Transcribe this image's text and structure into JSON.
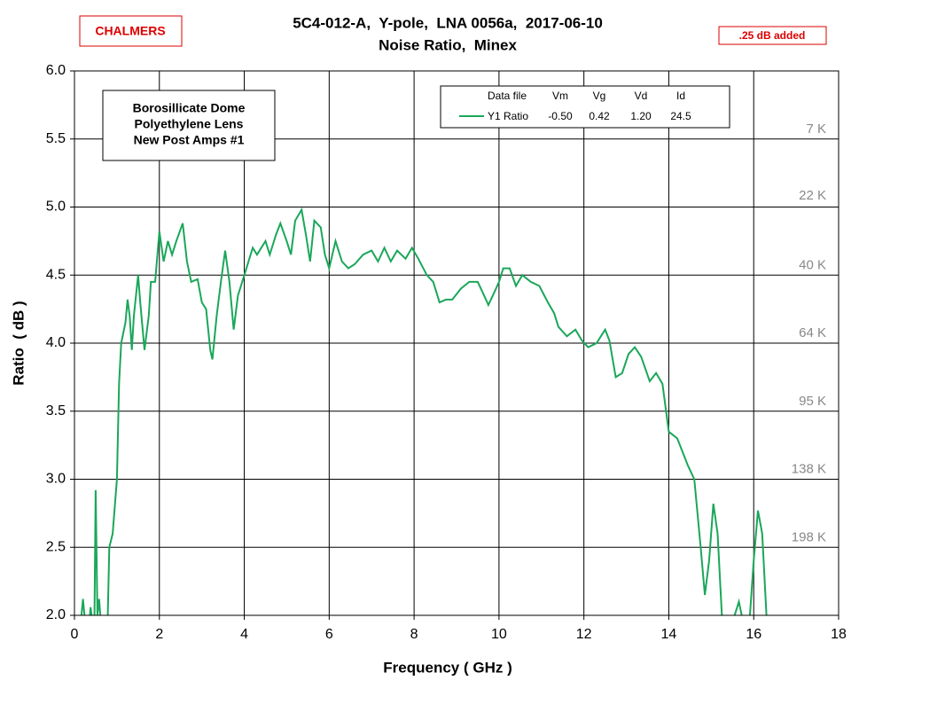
{
  "chart_data": {
    "type": "line",
    "title": "5C4-012-A,  Y-pole,  LNA 0056a,  2017-06-10",
    "subtitle": "Noise Ratio,  Minex",
    "logo": "CHALMERS",
    "note": ".25 dB added",
    "text_box": [
      "Borosillicate Dome",
      "Polyethylene Lens",
      "New Post Amps #1"
    ],
    "x_label": "Frequency ( GHz )",
    "y_label": "Ratio  ( dB )",
    "legend_table": {
      "headers": [
        "Data file",
        "Vm",
        "Vg",
        "Vd",
        "Id"
      ],
      "values": [
        "-0.50",
        "0.42",
        "1.20",
        "24.5"
      ]
    },
    "right_labels": [
      {
        "value": 5.57,
        "label": "7 K"
      },
      {
        "value": 5.08,
        "label": "22 K"
      },
      {
        "value": 4.57,
        "label": "40 K"
      },
      {
        "value": 4.07,
        "label": "64 K"
      },
      {
        "value": 3.57,
        "label": "95 K"
      },
      {
        "value": 3.07,
        "label": "138 K"
      },
      {
        "value": 2.57,
        "label": "198 K"
      }
    ],
    "xlim": [
      0,
      18
    ],
    "ylim": [
      2,
      6
    ],
    "xticks": [
      0,
      2,
      4,
      6,
      8,
      10,
      12,
      14,
      16,
      18
    ],
    "yticks": [
      {
        "value": 2,
        "label": "2.0"
      },
      2.5,
      {
        "value": 3,
        "label": "3.0"
      },
      3.5,
      {
        "value": 4,
        "label": "4.0"
      },
      4.5,
      {
        "value": 5,
        "label": "5.0"
      },
      5.5,
      {
        "value": 6,
        "label": "6.0"
      }
    ],
    "grid": true,
    "x": [
      0.15,
      0.2,
      0.25,
      0.35,
      0.38,
      0.42,
      0.47,
      0.5,
      0.54,
      0.58,
      0.62,
      0.78,
      0.82,
      0.9,
      1.0,
      1.05,
      1.1,
      1.2,
      1.25,
      1.3,
      1.35,
      1.4,
      1.5,
      1.55,
      1.65,
      1.75,
      1.8,
      1.9,
      2.0,
      2.1,
      2.2,
      2.3,
      2.4,
      2.55,
      2.65,
      2.75,
      2.9,
      3.0,
      3.1,
      3.2,
      3.25,
      3.35,
      3.45,
      3.55,
      3.65,
      3.75,
      3.85,
      4.0,
      4.1,
      4.2,
      4.3,
      4.5,
      4.6,
      4.75,
      4.85,
      5.0,
      5.1,
      5.2,
      5.35,
      5.45,
      5.55,
      5.65,
      5.8,
      5.9,
      6.0,
      6.15,
      6.3,
      6.45,
      6.6,
      6.8,
      7.0,
      7.15,
      7.3,
      7.45,
      7.6,
      7.8,
      7.95,
      8.1,
      8.3,
      8.45,
      8.6,
      8.75,
      8.9,
      9.1,
      9.3,
      9.5,
      9.65,
      9.75,
      9.9,
      10.0,
      10.1,
      10.25,
      10.4,
      10.55,
      10.75,
      10.95,
      11.15,
      11.3,
      11.4,
      11.6,
      11.8,
      11.95,
      12.1,
      12.3,
      12.5,
      12.6,
      12.75,
      12.9,
      13.05,
      13.2,
      13.35,
      13.55,
      13.7,
      13.85,
      14.0,
      14.2,
      14.45,
      14.6,
      14.75,
      14.85,
      14.95,
      15.05,
      15.15,
      15.25,
      15.35,
      15.55,
      15.65,
      15.75,
      15.9,
      16.0,
      16.1,
      16.2,
      16.3
    ],
    "series": [
      {
        "name": "Y1 Ratio",
        "color": "#1aa75a",
        "values": [
          1.95,
          2.12,
          1.95,
          1.95,
          2.06,
          1.95,
          1.95,
          2.92,
          2.0,
          2.12,
          1.95,
          1.95,
          2.5,
          2.6,
          3.0,
          3.7,
          4.0,
          4.15,
          4.32,
          4.2,
          3.95,
          4.2,
          4.5,
          4.3,
          3.95,
          4.2,
          4.45,
          4.45,
          4.82,
          4.6,
          4.75,
          4.65,
          4.75,
          4.88,
          4.6,
          4.45,
          4.47,
          4.3,
          4.25,
          3.95,
          3.88,
          4.2,
          4.45,
          4.68,
          4.45,
          4.1,
          4.35,
          4.5,
          4.6,
          4.7,
          4.65,
          4.75,
          4.65,
          4.8,
          4.88,
          4.75,
          4.65,
          4.9,
          4.98,
          4.8,
          4.6,
          4.9,
          4.85,
          4.65,
          4.55,
          4.75,
          4.6,
          4.55,
          4.58,
          4.65,
          4.68,
          4.6,
          4.7,
          4.6,
          4.68,
          4.62,
          4.7,
          4.62,
          4.5,
          4.45,
          4.3,
          4.32,
          4.32,
          4.4,
          4.45,
          4.45,
          4.35,
          4.28,
          4.38,
          4.45,
          4.55,
          4.55,
          4.42,
          4.5,
          4.45,
          4.42,
          4.3,
          4.22,
          4.12,
          4.05,
          4.1,
          4.02,
          3.97,
          4.0,
          4.1,
          4.02,
          3.75,
          3.78,
          3.92,
          3.97,
          3.9,
          3.72,
          3.78,
          3.7,
          3.35,
          3.3,
          3.1,
          3.0,
          2.5,
          2.15,
          2.4,
          2.82,
          2.6,
          2.0,
          1.95,
          2.0,
          2.1,
          1.95,
          1.95,
          2.4,
          2.77,
          2.6,
          2.0
        ]
      }
    ]
  }
}
